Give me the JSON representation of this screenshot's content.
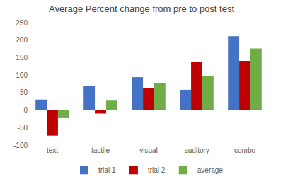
{
  "chart_data": {
    "type": "bar",
    "title": "Average Percent change from pre to post test",
    "categories": [
      "text",
      "tactile",
      "visual",
      "auditory",
      "combo"
    ],
    "series": [
      {
        "name": "trial 1",
        "color": "#4472c4",
        "values": [
          30,
          68,
          94,
          58,
          211
        ]
      },
      {
        "name": "trial 2",
        "color": "#c00000",
        "values": [
          -73,
          -10,
          62,
          138,
          141
        ]
      },
      {
        "name": "average",
        "color": "#70ad47",
        "values": [
          -21,
          29,
          78,
          98,
          176
        ]
      }
    ],
    "ylim": [
      -100,
      250
    ],
    "yticks": [
      -100,
      -50,
      0,
      50,
      100,
      150,
      200,
      250
    ],
    "grid": false,
    "legend": "bottom"
  }
}
